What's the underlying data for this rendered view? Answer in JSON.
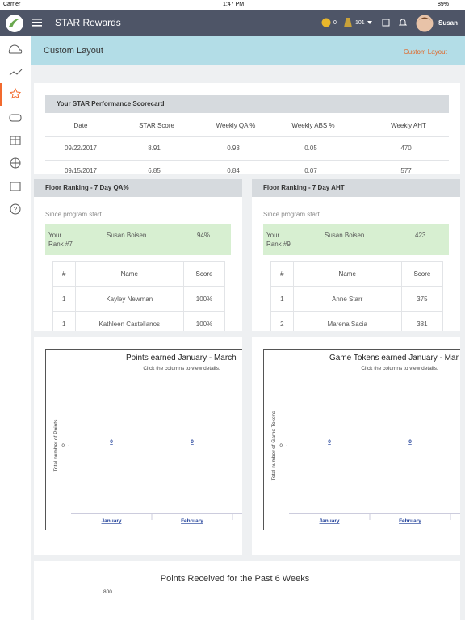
{
  "status_bar": {
    "carrier": "Carrier",
    "time": "1:47 PM",
    "battery": "89%"
  },
  "header": {
    "title": "STAR Rewards",
    "coins": "0",
    "tokens": "101",
    "user": "Susan"
  },
  "page": {
    "title": "Custom Layout",
    "link": "Custom Layout"
  },
  "scorecard": {
    "title": "Your STAR Performance Scorecard",
    "columns": [
      "Date",
      "STAR Score",
      "Weekly QA %",
      "Weekly ABS %",
      "Weekly AHT"
    ],
    "rows": [
      [
        "09/22/2017",
        "8.91",
        "0.93",
        "0.05",
        "470"
      ],
      [
        "09/15/2017",
        "6.85",
        "0.84",
        "0.07",
        "577"
      ]
    ],
    "trends": [
      [
        "up",
        "up",
        "down",
        "down"
      ],
      [
        "up",
        "up",
        "right",
        "up"
      ]
    ]
  },
  "rankings": [
    {
      "title": "Floor Ranking - 7 Day QA%",
      "note": "Since program start.",
      "your_rank": "Your Rank #7",
      "your_name": "Susan Boisen",
      "your_score": "94%",
      "columns": [
        "#",
        "Name",
        "Score"
      ],
      "rows": [
        [
          "1",
          "Kayley Newman",
          "100%"
        ],
        [
          "1",
          "Kathleen Castellanos",
          "100%"
        ]
      ]
    },
    {
      "title": "Floor Ranking - 7 Day AHT",
      "note": "Since program start.",
      "your_rank": "Your Rank #9",
      "your_name": "Susan Boisen",
      "your_score": "423",
      "columns": [
        "#",
        "Name",
        "Score"
      ],
      "rows": [
        [
          "1",
          "Anne Starr",
          "375"
        ],
        [
          "2",
          "Marena Sacia",
          "381"
        ]
      ]
    }
  ],
  "charts": [
    {
      "type": "bar",
      "title": "Points earned January - March",
      "subtitle": "Click the columns to view details.",
      "y_label": "Total number of Points",
      "categories": [
        "January",
        "February"
      ],
      "values": [
        0,
        0
      ],
      "ylim": [
        -1,
        1
      ],
      "yticks": [
        0
      ],
      "color": "#1f3f99"
    },
    {
      "type": "bar",
      "title": "Game Tokens earned January - Mar",
      "subtitle": "Click the columns to view details.",
      "y_label": "Total number of Game Tokens",
      "categories": [
        "January",
        "February"
      ],
      "values": [
        0,
        0
      ],
      "ylim": [
        -1,
        1
      ],
      "yticks": [
        0
      ],
      "color": "#1f3f99"
    }
  ],
  "weekly_chart": {
    "title": "Points Received for the Past 6 Weeks",
    "yticks": [
      800
    ]
  }
}
